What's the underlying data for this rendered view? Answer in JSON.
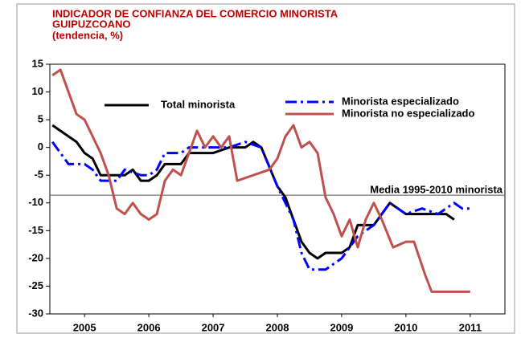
{
  "chart_data": {
    "type": "line",
    "title": [
      "INDICADOR DE CONFIANZA DEL COMERCIO MINORISTA",
      "GUIPUZCOANO",
      "(tendencia, %)"
    ],
    "xlim": [
      2004.96,
      2012.04
    ],
    "xticks": [
      {
        "value": 2005.5,
        "label": "2005"
      },
      {
        "value": 2006.5,
        "label": "2006"
      },
      {
        "value": 2007.5,
        "label": "2007"
      },
      {
        "value": 2008.5,
        "label": "2008"
      },
      {
        "value": 2009.5,
        "label": "2009"
      },
      {
        "value": 2010.5,
        "label": "2010"
      },
      {
        "value": 2011.5,
        "label": "2011"
      }
    ],
    "ylim": [
      -30,
      15
    ],
    "yticks": [
      15,
      10,
      5,
      0,
      -5,
      -10,
      -15,
      -20,
      -25,
      -30
    ],
    "reference_line": {
      "value": -8.6,
      "label": "Media 1995-2010 minorista"
    },
    "series": [
      {
        "name": "Total minorista",
        "color": "#000000",
        "style": "solid",
        "x": [
          2005.0,
          2005.25,
          2005.375,
          2005.5,
          2005.625,
          2005.75,
          2006.0,
          2006.125,
          2006.25,
          2006.375,
          2006.5,
          2006.625,
          2006.75,
          2007.0,
          2007.125,
          2007.5,
          2007.75,
          2008.0,
          2008.125,
          2008.25,
          2008.5,
          2008.625,
          2008.875,
          2009.0,
          2009.125,
          2009.25,
          2009.5,
          2009.625,
          2009.75,
          2010.0,
          2010.25,
          2010.5,
          2010.75,
          2011.0,
          2011.125,
          2011.25
        ],
        "values": [
          4,
          2,
          1,
          -1,
          -2,
          -5,
          -5,
          -5,
          -4,
          -6,
          -6,
          -5,
          -3,
          -3,
          -1,
          -1,
          0,
          0,
          1,
          0,
          -7,
          -9,
          -17,
          -19,
          -20,
          -19,
          -19,
          -18,
          -14,
          -14,
          -10,
          -12,
          -12,
          -12,
          -12,
          -13
        ]
      },
      {
        "name": "Minorista especializado",
        "color": "#0000ff",
        "style": "dashdot",
        "x": [
          2005.0,
          2005.25,
          2005.5,
          2005.625,
          2005.75,
          2006.0,
          2006.125,
          2006.375,
          2006.5,
          2006.625,
          2006.75,
          2007.0,
          2007.125,
          2007.5,
          2007.75,
          2008.0,
          2008.25,
          2008.5,
          2008.75,
          2008.875,
          2009.0,
          2009.25,
          2009.5,
          2009.625,
          2009.75,
          2010.0,
          2010.25,
          2010.5,
          2010.75,
          2011.0,
          2011.25,
          2011.375,
          2011.5
        ],
        "values": [
          1,
          -3,
          -3,
          -4,
          -6,
          -6,
          -4,
          -5,
          -5,
          -4,
          -1,
          -1,
          0,
          0,
          0,
          1,
          0,
          -7,
          -13,
          -19,
          -22,
          -22,
          -20,
          -18,
          -16,
          -14,
          -10,
          -12,
          -11,
          -12,
          -10,
          -11,
          -11
        ]
      },
      {
        "name": "Minorista no especializado",
        "color": "#c0504d",
        "style": "solid",
        "x": [
          2005.0,
          2005.125,
          2005.25,
          2005.375,
          2005.5,
          2005.625,
          2005.75,
          2005.875,
          2006.0,
          2006.125,
          2006.25,
          2006.375,
          2006.5,
          2006.625,
          2006.75,
          2006.875,
          2007.0,
          2007.125,
          2007.25,
          2007.375,
          2007.5,
          2007.625,
          2007.75,
          2007.875,
          2008.375,
          2008.5,
          2008.625,
          2008.75,
          2008.875,
          2009.0,
          2009.125,
          2009.25,
          2009.375,
          2009.5,
          2009.625,
          2009.75,
          2009.875,
          2010.0,
          2010.125,
          2010.3,
          2010.5,
          2010.625,
          2010.8,
          2010.9,
          2011.0,
          2011.125,
          2011.3,
          2011.5
        ],
        "values": [
          13,
          14,
          10,
          6,
          5,
          2,
          -1,
          -5,
          -11,
          -12,
          -10,
          -12,
          -13,
          -12,
          -6,
          -4,
          -5,
          -1,
          3,
          0,
          2,
          0,
          2,
          -6,
          -4,
          -2,
          2,
          4,
          0,
          1,
          -1,
          -9,
          -12,
          -16,
          -13,
          -18,
          -13,
          -10,
          -13,
          -18,
          -17,
          -17,
          -23,
          -26,
          -26,
          -26,
          -26,
          -26
        ]
      }
    ]
  }
}
